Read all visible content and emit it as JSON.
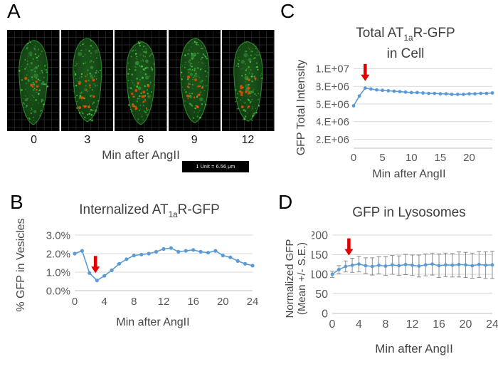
{
  "colors": {
    "line": "#5b9bd5",
    "arrow": "#e00000",
    "grid": "#d9d9d9",
    "tick": "#595959",
    "title": "#404040",
    "error": "#8c8c8c",
    "micro_green": "#3db53d",
    "micro_red": "#f04a00"
  },
  "panel_a": {
    "label": "A",
    "frame_times": [
      "0",
      "3",
      "6",
      "9",
      "12"
    ],
    "xlabel": "Min after AngII",
    "scale_note": "1 Unit = 6.56 μm"
  },
  "panel_b": {
    "label": "B"
  },
  "panel_c": {
    "label": "C"
  },
  "panel_d": {
    "label": "D"
  },
  "chart_data": [
    {
      "id": "internalized-gfp",
      "type": "line",
      "title": "Internalized AT1aR-GFP",
      "title_parts": [
        {
          "t": "Internalized AT"
        },
        {
          "t": "1a",
          "sub": true
        },
        {
          "t": "R-GFP"
        }
      ],
      "xlabel": "Min after AngII",
      "ylabel": "% GFP in Vesicles",
      "x": [
        0,
        1,
        2,
        3,
        4,
        5,
        6,
        7,
        8,
        9,
        10,
        11,
        12,
        13,
        14,
        15,
        16,
        17,
        18,
        19,
        20,
        21,
        22,
        23,
        24
      ],
      "y": [
        2.0,
        2.15,
        0.95,
        0.55,
        0.8,
        1.1,
        1.45,
        1.7,
        1.9,
        1.95,
        2.0,
        2.1,
        2.25,
        2.3,
        2.1,
        2.15,
        2.2,
        2.1,
        2.05,
        2.15,
        1.9,
        1.8,
        1.6,
        1.45,
        1.35
      ],
      "y_units": "percent",
      "xlim": [
        0,
        24
      ],
      "ylim": [
        0,
        3
      ],
      "xticks": [
        0,
        4,
        8,
        12,
        16,
        20,
        24
      ],
      "yticks": [
        {
          "v": 0,
          "label": "0.0%"
        },
        {
          "v": 1,
          "label": "1.0%"
        },
        {
          "v": 2,
          "label": "2.0%"
        },
        {
          "v": 3,
          "label": "3.0%"
        }
      ],
      "grid": true,
      "legend": false,
      "arrow": {
        "x": 2.8,
        "y": 0.95
      }
    },
    {
      "id": "total-gfp-in-cell",
      "type": "line",
      "title": "Total AT1aR-GFP in Cell",
      "title_lines": [
        [
          {
            "t": "Total AT"
          },
          {
            "t": "1a",
            "sub": true
          },
          {
            "t": "R-GFP"
          }
        ],
        [
          {
            "t": "in Cell"
          }
        ]
      ],
      "xlabel": "Min after AngII",
      "ylabel": "GFP Total Intensity",
      "x": [
        0,
        1,
        2,
        3,
        4,
        5,
        6,
        7,
        8,
        9,
        10,
        11,
        12,
        13,
        14,
        15,
        16,
        17,
        18,
        19,
        20,
        21,
        22,
        23,
        24
      ],
      "y": [
        5800000,
        6900000,
        7800000,
        7700000,
        7600000,
        7550000,
        7500000,
        7450000,
        7400000,
        7350000,
        7300000,
        7300000,
        7250000,
        7200000,
        7200000,
        7150000,
        7150000,
        7100000,
        7100000,
        7100000,
        7150000,
        7150000,
        7200000,
        7200000,
        7250000
      ],
      "xlim": [
        0,
        24
      ],
      "ylim": [
        1000000,
        11000000
      ],
      "xticks": [
        0,
        5,
        10,
        15,
        20
      ],
      "yticks": [
        {
          "v": 2000000,
          "label": "2.E+06"
        },
        {
          "v": 4000000,
          "label": "4.E+06"
        },
        {
          "v": 6000000,
          "label": "6.E+06"
        },
        {
          "v": 8000000,
          "label": "8.E+06"
        },
        {
          "v": 10000000,
          "label": "1.E+07"
        }
      ],
      "grid": true,
      "legend": false,
      "arrow": {
        "x": 2,
        "y": 8600000
      }
    },
    {
      "id": "gfp-in-lysosomes",
      "type": "line",
      "title": "GFP in Lysosomes",
      "xlabel": "Min after AngII",
      "ylabel_lines": [
        "Normalized GFP",
        "(Mean +/- S.E.)"
      ],
      "x": [
        0,
        1,
        2,
        3,
        4,
        5,
        6,
        7,
        8,
        9,
        10,
        11,
        12,
        13,
        14,
        15,
        16,
        17,
        18,
        19,
        20,
        21,
        22,
        23,
        24
      ],
      "y": [
        100,
        112,
        120,
        123,
        126,
        122,
        120,
        123,
        121,
        124,
        122,
        125,
        123,
        121,
        124,
        126,
        122,
        124,
        123,
        125,
        124,
        122,
        125,
        123,
        124
      ],
      "err": [
        8,
        10,
        14,
        18,
        20,
        20,
        22,
        22,
        24,
        24,
        25,
        26,
        26,
        28,
        28,
        28,
        30,
        30,
        30,
        32,
        32,
        32,
        33,
        34,
        35
      ],
      "xlim": [
        0,
        24
      ],
      "ylim": [
        0,
        200
      ],
      "xticks": [
        0,
        4,
        8,
        12,
        16,
        20,
        24
      ],
      "yticks": [
        {
          "v": 0,
          "label": "0"
        },
        {
          "v": 50,
          "label": "50"
        },
        {
          "v": 100,
          "label": "100"
        },
        {
          "v": 150,
          "label": "150"
        },
        {
          "v": 200,
          "label": "200"
        }
      ],
      "grid": true,
      "legend": false,
      "arrow": {
        "x": 2.5,
        "y": 148
      }
    }
  ]
}
